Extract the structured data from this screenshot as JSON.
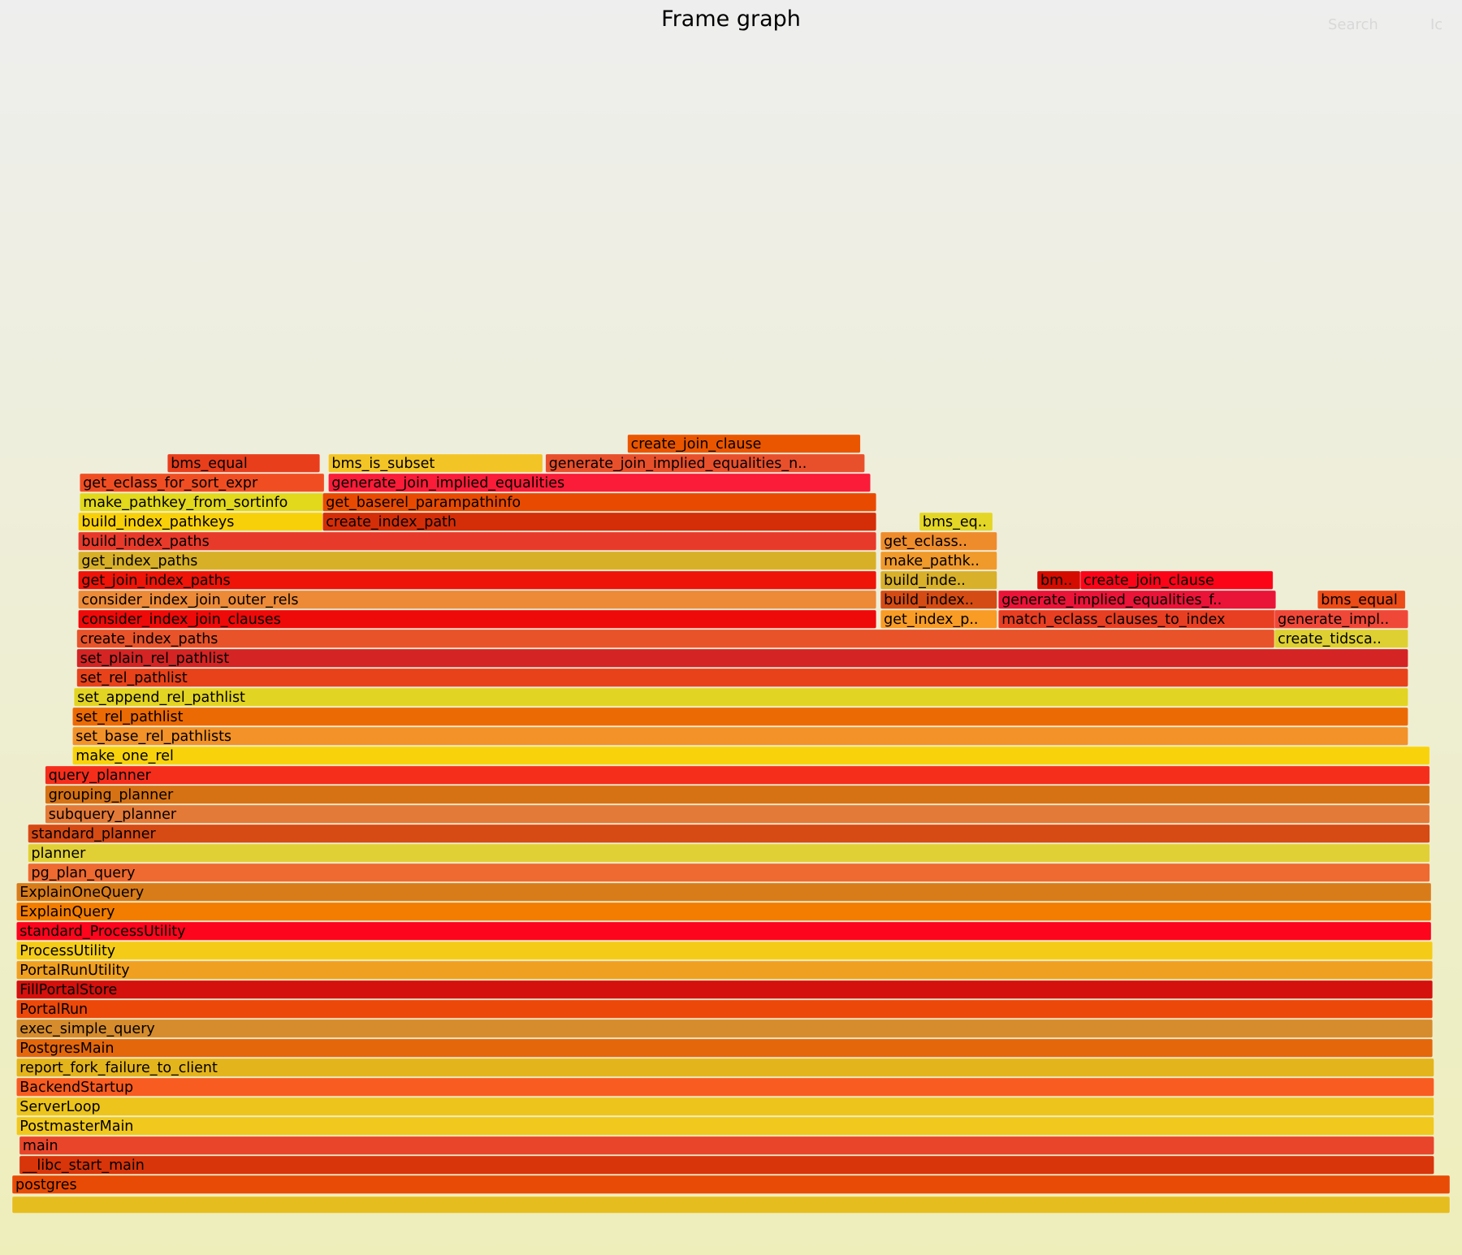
{
  "header": {
    "title": "Frame graph",
    "search_label": "Search",
    "ic_label": "Ic"
  },
  "chart_data": {
    "type": "flamegraph",
    "frames": [
      {
        "label": "postgres",
        "depth": 1,
        "start": 0.0,
        "width": 100.0,
        "color": "#e84b05"
      },
      {
        "label": "__libc_start_main",
        "depth": 2,
        "start": 0.5,
        "width": 98.4,
        "color": "#d8350a"
      },
      {
        "label": "main",
        "depth": 3,
        "start": 0.5,
        "width": 98.4,
        "color": "#e8452a"
      },
      {
        "label": "PostmasterMain",
        "depth": 4,
        "start": 0.3,
        "width": 98.6,
        "color": "#f0c81e"
      },
      {
        "label": "ServerLoop",
        "depth": 5,
        "start": 0.3,
        "width": 98.6,
        "color": "#ecc41c"
      },
      {
        "label": "BackendStartup",
        "depth": 6,
        "start": 0.3,
        "width": 98.6,
        "color": "#f95c20"
      },
      {
        "label": "report_fork_failure_to_client",
        "depth": 7,
        "start": 0.3,
        "width": 98.6,
        "color": "#e4b41c"
      },
      {
        "label": "PostgresMain",
        "depth": 8,
        "start": 0.3,
        "width": 98.5,
        "color": "#e4670c"
      },
      {
        "label": "exec_simple_query",
        "depth": 9,
        "start": 0.3,
        "width": 98.5,
        "color": "#d68c2c"
      },
      {
        "label": "PortalRun",
        "depth": 10,
        "start": 0.3,
        "width": 98.5,
        "color": "#ec480a"
      },
      {
        "label": "FillPortalStore",
        "depth": 11,
        "start": 0.3,
        "width": 98.5,
        "color": "#d4110c"
      },
      {
        "label": "PortalRunUtility",
        "depth": 12,
        "start": 0.3,
        "width": 98.5,
        "color": "#f0a020"
      },
      {
        "label": "ProcessUtility",
        "depth": 13,
        "start": 0.3,
        "width": 98.5,
        "color": "#f4cc18"
      },
      {
        "label": "standard_ProcessUtility",
        "depth": 14,
        "start": 0.3,
        "width": 98.4,
        "color": "#fd051c"
      },
      {
        "label": "ExplainQuery",
        "depth": 15,
        "start": 0.3,
        "width": 98.4,
        "color": "#f27d00"
      },
      {
        "label": "ExplainOneQuery",
        "depth": 16,
        "start": 0.3,
        "width": 98.4,
        "color": "#d87c1a"
      },
      {
        "label": "pg_plan_query",
        "depth": 17,
        "start": 1.1,
        "width": 97.5,
        "color": "#ee6a30"
      },
      {
        "label": "planner",
        "depth": 18,
        "start": 1.1,
        "width": 97.5,
        "color": "#e0d036"
      },
      {
        "label": "standard_planner",
        "depth": 19,
        "start": 1.1,
        "width": 97.5,
        "color": "#d64a14"
      },
      {
        "label": "subquery_planner",
        "depth": 20,
        "start": 2.3,
        "width": 96.3,
        "color": "#e47a38"
      },
      {
        "label": "grouping_planner",
        "depth": 21,
        "start": 2.3,
        "width": 96.3,
        "color": "#d67214"
      },
      {
        "label": "query_planner",
        "depth": 22,
        "start": 2.3,
        "width": 96.3,
        "color": "#f52e1c"
      },
      {
        "label": "make_one_rel",
        "depth": 23,
        "start": 4.2,
        "width": 94.4,
        "color": "#f8d30c"
      },
      {
        "label": "set_base_rel_pathlists",
        "depth": 24,
        "start": 4.2,
        "width": 92.9,
        "color": "#f29228"
      },
      {
        "label": "set_rel_pathlist",
        "depth": 25,
        "start": 4.2,
        "width": 92.9,
        "color": "#ec6a04"
      },
      {
        "label": "set_append_rel_pathlist",
        "depth": 26,
        "start": 4.3,
        "width": 92.8,
        "color": "#e2d422"
      },
      {
        "label": "set_rel_pathlist",
        "depth": 27,
        "start": 4.5,
        "width": 92.6,
        "color": "#e8421a"
      },
      {
        "label": "set_plain_rel_pathlist",
        "depth": 28,
        "start": 4.5,
        "width": 92.6,
        "color": "#d42424"
      },
      {
        "label": "create_index_paths",
        "depth": 29,
        "start": 4.5,
        "width": 83.3,
        "color": "#e8532a"
      },
      {
        "label": "consider_index_join_clauses",
        "depth": 30,
        "start": 4.6,
        "width": 55.5,
        "color": "#ee0a08"
      },
      {
        "label": "consider_index_join_outer_rels",
        "depth": 31,
        "start": 4.6,
        "width": 55.5,
        "color": "#ec8a38"
      },
      {
        "label": "get_join_index_paths",
        "depth": 32,
        "start": 4.6,
        "width": 55.5,
        "color": "#ee1408"
      },
      {
        "label": "get_index_paths",
        "depth": 33,
        "start": 4.6,
        "width": 55.5,
        "color": "#d8b028"
      },
      {
        "label": "build_index_paths",
        "depth": 34,
        "start": 4.6,
        "width": 55.5,
        "color": "#e83a2a"
      },
      {
        "label": "build_index_pathkeys",
        "depth": 35,
        "start": 4.6,
        "width": 17.0,
        "color": "#f8d00a"
      },
      {
        "label": "make_pathkey_from_sortinfo",
        "depth": 36,
        "start": 4.7,
        "width": 17.0,
        "color": "#e2d81c"
      },
      {
        "label": "get_eclass_for_sort_expr",
        "depth": 37,
        "start": 4.7,
        "width": 17.0,
        "color": "#f04e22"
      },
      {
        "label": "bms_equal",
        "depth": 38,
        "start": 10.8,
        "width": 10.6,
        "color": "#e83e1c"
      },
      {
        "label": "create_index_path",
        "depth": 35,
        "start": 21.6,
        "width": 38.5,
        "color": "#d42e08"
      },
      {
        "label": "get_baserel_parampathinfo",
        "depth": 36,
        "start": 21.6,
        "width": 38.5,
        "color": "#e84a02"
      },
      {
        "label": "generate_join_implied_equalities",
        "depth": 37,
        "start": 22.0,
        "width": 37.7,
        "color": "#fa1c38"
      },
      {
        "label": "bms_is_subset",
        "depth": 38,
        "start": 22.0,
        "width": 14.9,
        "color": "#f2c426"
      },
      {
        "label": "generate_join_implied_equalities_n..",
        "depth": 38,
        "start": 37.1,
        "width": 22.2,
        "color": "#e8502c"
      },
      {
        "label": "create_join_clause",
        "depth": 39,
        "start": 42.8,
        "width": 16.2,
        "color": "#ea5600"
      },
      {
        "label": "get_index_p..",
        "depth": 30,
        "start": 60.4,
        "width": 8.1,
        "color": "#f89c26"
      },
      {
        "label": "build_index..",
        "depth": 31,
        "start": 60.4,
        "width": 8.1,
        "color": "#d44c14"
      },
      {
        "label": "build_inde..",
        "depth": 32,
        "start": 60.4,
        "width": 8.1,
        "color": "#d8b02a"
      },
      {
        "label": "make_pathk..",
        "depth": 33,
        "start": 60.4,
        "width": 8.1,
        "color": "#f09a2c"
      },
      {
        "label": "get_eclass..",
        "depth": 34,
        "start": 60.4,
        "width": 8.1,
        "color": "#ee8c2c"
      },
      {
        "label": "bms_eq..",
        "depth": 35,
        "start": 63.1,
        "width": 5.1,
        "color": "#e4d626"
      },
      {
        "label": "match_eclass_clauses_to_index",
        "depth": 30,
        "start": 68.6,
        "width": 19.3,
        "color": "#e83e22"
      },
      {
        "label": "generate_implied_equalities_f..",
        "depth": 31,
        "start": 68.6,
        "width": 19.3,
        "color": "#ea1438"
      },
      {
        "label": "bm..",
        "depth": 32,
        "start": 71.3,
        "width": 3.0,
        "color": "#d40c00"
      },
      {
        "label": "create_join_clause",
        "depth": 32,
        "start": 74.3,
        "width": 13.4,
        "color": "#fc0418"
      },
      {
        "label": "create_tidsca..",
        "depth": 29,
        "start": 87.8,
        "width": 9.3,
        "color": "#ded032"
      },
      {
        "label": "generate_impl..",
        "depth": 30,
        "start": 87.8,
        "width": 9.3,
        "color": "#f04838"
      },
      {
        "label": "bms_equal",
        "depth": 31,
        "start": 90.8,
        "width": 6.1,
        "color": "#ec4c18"
      }
    ]
  }
}
